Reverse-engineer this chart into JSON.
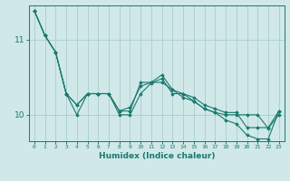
{
  "xlabel": "Humidex (Indice chaleur)",
  "ylabel": "",
  "background_color": "#d0e8e8",
  "line_color": "#1a7a6e",
  "grid_color": "#b0d0d0",
  "xlim": [
    -0.5,
    23.5
  ],
  "ylim": [
    9.65,
    11.45
  ],
  "yticks": [
    10,
    11
  ],
  "xticks": [
    0,
    1,
    2,
    3,
    4,
    5,
    6,
    7,
    8,
    9,
    10,
    11,
    12,
    13,
    14,
    15,
    16,
    17,
    18,
    19,
    20,
    21,
    22,
    23
  ],
  "series": [
    [
      11.38,
      11.05,
      10.83,
      10.28,
      10.0,
      10.28,
      10.28,
      10.28,
      10.0,
      10.0,
      10.28,
      10.42,
      10.48,
      10.28,
      10.28,
      10.18,
      10.08,
      10.03,
      10.0,
      10.0,
      10.0,
      10.0,
      9.82,
      10.0
    ],
    [
      11.38,
      11.05,
      10.83,
      10.28,
      10.13,
      10.28,
      10.28,
      10.28,
      10.05,
      10.05,
      10.43,
      10.43,
      10.53,
      10.33,
      10.28,
      10.23,
      10.13,
      10.08,
      10.03,
      10.03,
      9.83,
      9.83,
      9.83,
      10.05
    ],
    [
      11.38,
      11.05,
      10.83,
      10.28,
      10.13,
      10.28,
      10.28,
      10.28,
      10.05,
      10.1,
      10.38,
      10.43,
      10.43,
      10.33,
      10.23,
      10.18,
      10.08,
      10.03,
      9.93,
      9.88,
      9.73,
      9.68,
      9.68,
      10.05
    ]
  ]
}
